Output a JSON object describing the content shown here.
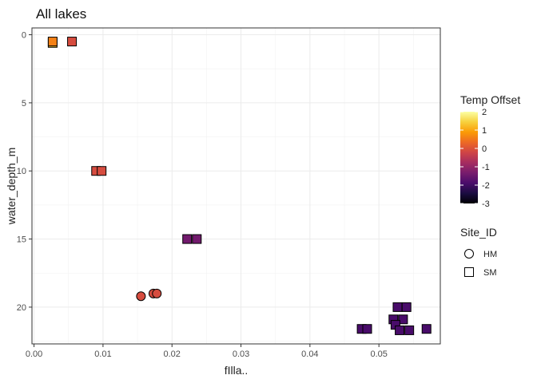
{
  "chart_data": {
    "type": "scatter",
    "title": "All lakes",
    "xlabel": "fIlla..",
    "ylabel": "water_depth_m",
    "xlim": [
      -0.0003,
      0.0589
    ],
    "ylim": [
      -0.5,
      22.7
    ],
    "y_reversed": true,
    "grid": true,
    "x_ticks": [
      {
        "value": 0.0,
        "label": "0.00"
      },
      {
        "value": 0.01,
        "label": "0.01"
      },
      {
        "value": 0.02,
        "label": "0.02"
      },
      {
        "value": 0.03,
        "label": "0.03"
      },
      {
        "value": 0.04,
        "label": "0.04"
      },
      {
        "value": 0.05,
        "label": "0.05"
      }
    ],
    "y_ticks": [
      {
        "value": 0,
        "label": "0"
      },
      {
        "value": 5,
        "label": "5"
      },
      {
        "value": 10,
        "label": "10"
      },
      {
        "value": 15,
        "label": "15"
      },
      {
        "value": 20,
        "label": "20"
      }
    ],
    "color_legend": {
      "title": "Temp Offset",
      "min": -3,
      "max": 2,
      "ticks": [
        {
          "value": 2,
          "label": "2"
        },
        {
          "value": 1,
          "label": "1"
        },
        {
          "value": 0,
          "label": "0"
        },
        {
          "value": -1,
          "label": "-1"
        },
        {
          "value": -2,
          "label": "-2"
        },
        {
          "value": -3,
          "label": "-3"
        }
      ],
      "palette": [
        "#000004",
        "#1b0c41",
        "#4a0c6b",
        "#781c6d",
        "#a52c60",
        "#cf4446",
        "#ed6925",
        "#fb9b06",
        "#f7d13d",
        "#fcffa4"
      ]
    },
    "shape_legend": {
      "title": "Site_ID",
      "items": [
        {
          "label": "HM",
          "shape": "circle"
        },
        {
          "label": "SM",
          "shape": "square"
        }
      ]
    },
    "points": [
      {
        "x": 0.0027,
        "y": 0.6,
        "offset": 1.3,
        "site": "SM"
      },
      {
        "x": 0.0027,
        "y": 0.5,
        "offset": 0.6,
        "site": "SM"
      },
      {
        "x": 0.0055,
        "y": 0.5,
        "offset": -0.1,
        "site": "SM"
      },
      {
        "x": 0.009,
        "y": 10.0,
        "offset": -0.1,
        "site": "SM"
      },
      {
        "x": 0.0098,
        "y": 10.0,
        "offset": -0.1,
        "site": "SM"
      },
      {
        "x": 0.0222,
        "y": 15.0,
        "offset": -1.4,
        "site": "SM"
      },
      {
        "x": 0.0236,
        "y": 15.0,
        "offset": -1.4,
        "site": "SM"
      },
      {
        "x": 0.0155,
        "y": 19.2,
        "offset": -0.1,
        "site": "HM"
      },
      {
        "x": 0.0173,
        "y": 19.0,
        "offset": -0.1,
        "site": "HM"
      },
      {
        "x": 0.0178,
        "y": 19.0,
        "offset": -0.1,
        "site": "HM"
      },
      {
        "x": 0.0475,
        "y": 21.6,
        "offset": -1.9,
        "site": "SM"
      },
      {
        "x": 0.0483,
        "y": 21.6,
        "offset": -1.9,
        "site": "SM"
      },
      {
        "x": 0.0527,
        "y": 20.0,
        "offset": -1.9,
        "site": "SM"
      },
      {
        "x": 0.054,
        "y": 20.0,
        "offset": -1.9,
        "site": "SM"
      },
      {
        "x": 0.0521,
        "y": 20.9,
        "offset": -1.9,
        "site": "SM"
      },
      {
        "x": 0.0535,
        "y": 20.9,
        "offset": -1.9,
        "site": "SM"
      },
      {
        "x": 0.0524,
        "y": 21.3,
        "offset": -1.9,
        "site": "SM"
      },
      {
        "x": 0.053,
        "y": 21.7,
        "offset": -1.9,
        "site": "SM"
      },
      {
        "x": 0.0544,
        "y": 21.7,
        "offset": -1.9,
        "site": "SM"
      },
      {
        "x": 0.0569,
        "y": 21.6,
        "offset": -1.9,
        "site": "SM"
      }
    ]
  }
}
